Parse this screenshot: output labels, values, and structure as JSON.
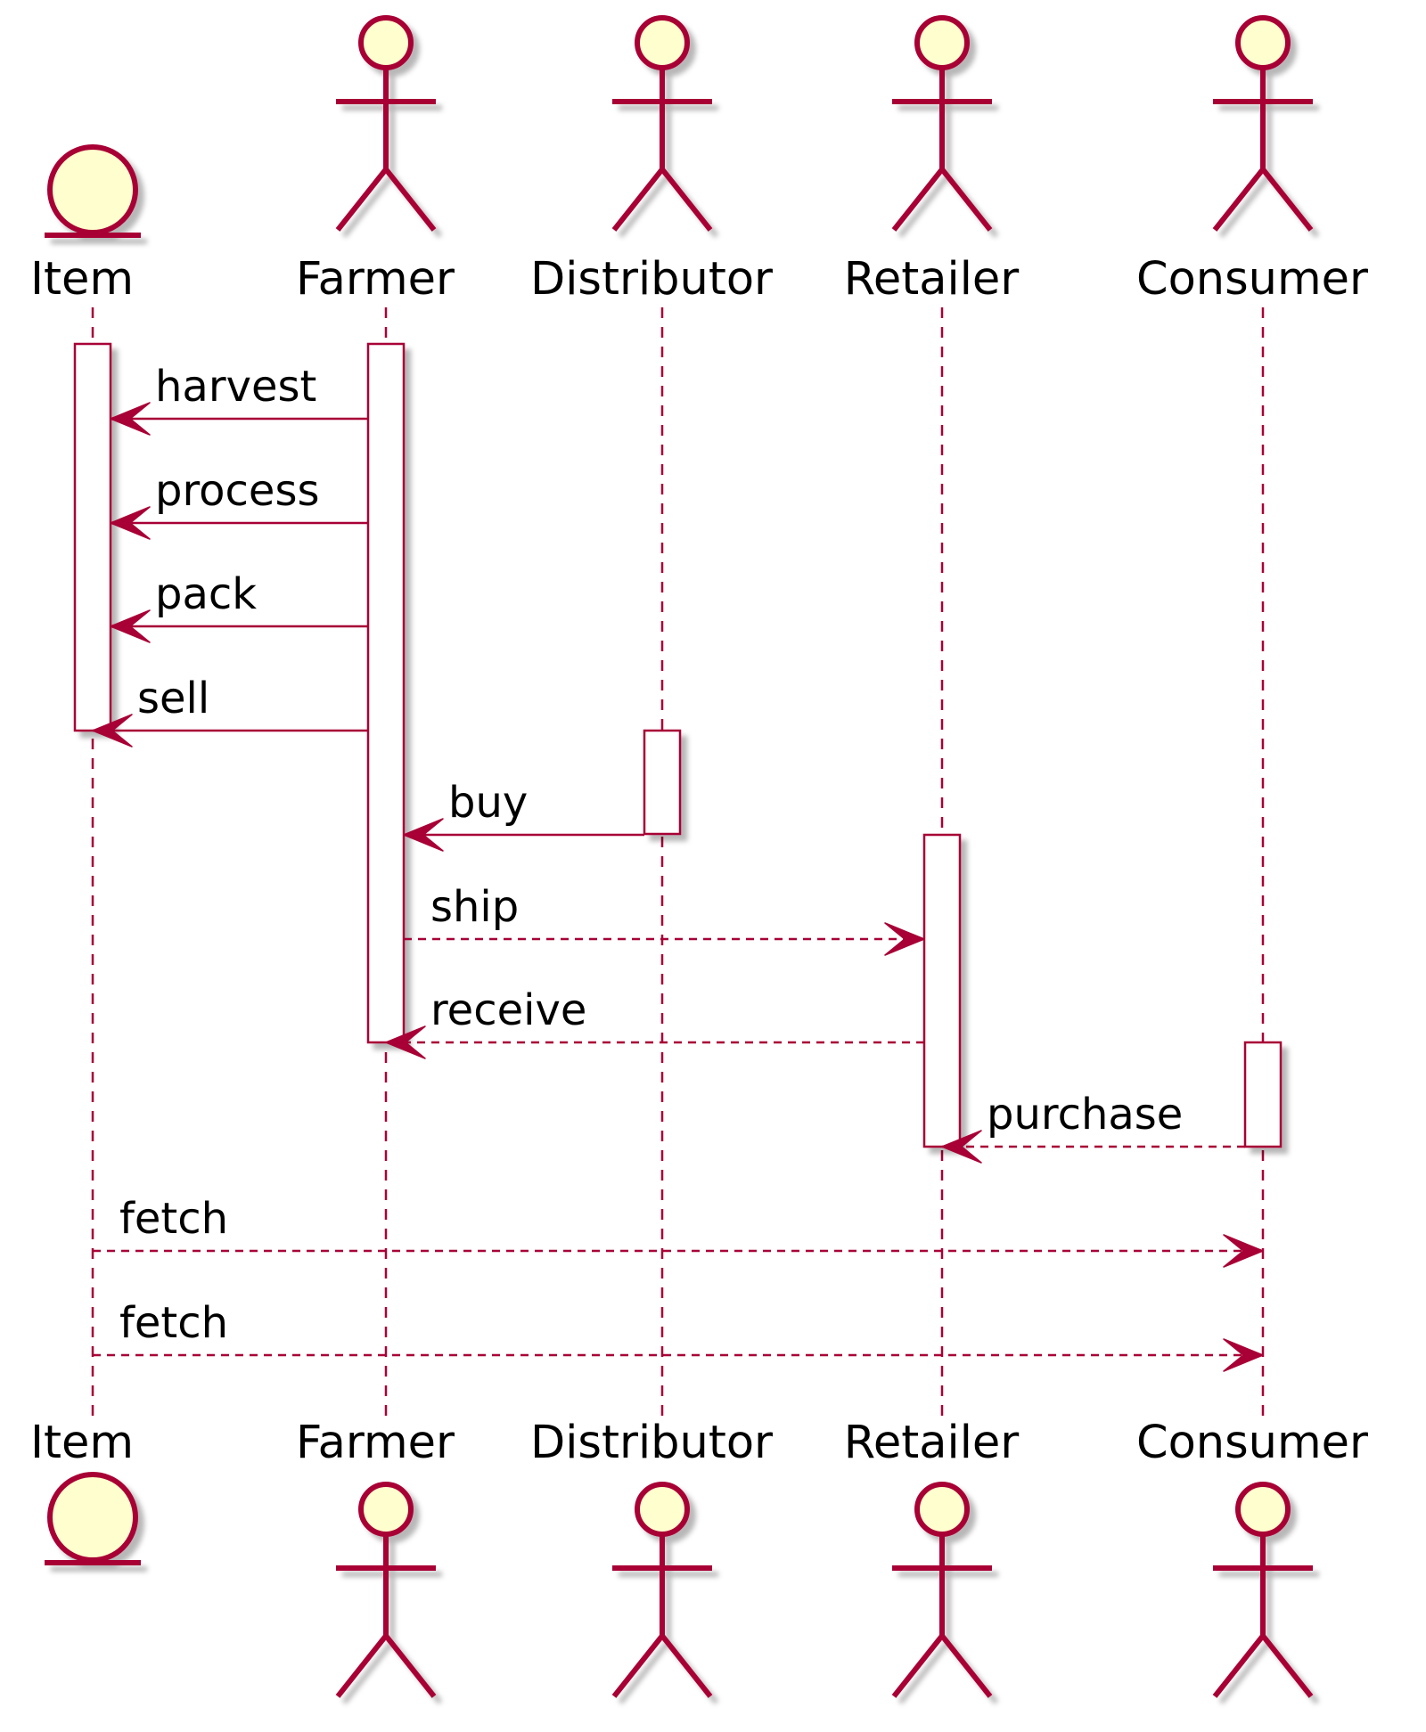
{
  "colors": {
    "stroke": "#A80036",
    "fill": "#FEFECE",
    "shadow": "#C8C8C8",
    "activation_fill": "#FFFFFF",
    "text": "#000000"
  },
  "participants": [
    {
      "id": "item",
      "name": "Item",
      "kind": "entity"
    },
    {
      "id": "farmer",
      "name": "Farmer",
      "kind": "actor"
    },
    {
      "id": "distributor",
      "name": "Distributor",
      "kind": "actor"
    },
    {
      "id": "retailer",
      "name": "Retailer",
      "kind": "actor"
    },
    {
      "id": "consumer",
      "name": "Consumer",
      "kind": "actor"
    }
  ],
  "messages": [
    {
      "label": "harvest",
      "from": "Farmer",
      "to": "Item",
      "style": "solid"
    },
    {
      "label": "process",
      "from": "Farmer",
      "to": "Item",
      "style": "solid"
    },
    {
      "label": "pack",
      "from": "Farmer",
      "to": "Item",
      "style": "solid"
    },
    {
      "label": "sell",
      "from": "Farmer",
      "to": "Item",
      "style": "solid"
    },
    {
      "label": "buy",
      "from": "Distributor",
      "to": "Farmer",
      "style": "solid"
    },
    {
      "label": "ship",
      "from": "Farmer",
      "to": "Retailer",
      "style": "dashed"
    },
    {
      "label": "receive",
      "from": "Retailer",
      "to": "Farmer",
      "style": "dashed"
    },
    {
      "label": "purchase",
      "from": "Consumer",
      "to": "Retailer",
      "style": "dashed"
    },
    {
      "label": "fetch",
      "from": "Item",
      "to": "Consumer",
      "style": "dashed"
    },
    {
      "label": "fetch",
      "from": "Item",
      "to": "Consumer",
      "style": "dashed"
    }
  ]
}
